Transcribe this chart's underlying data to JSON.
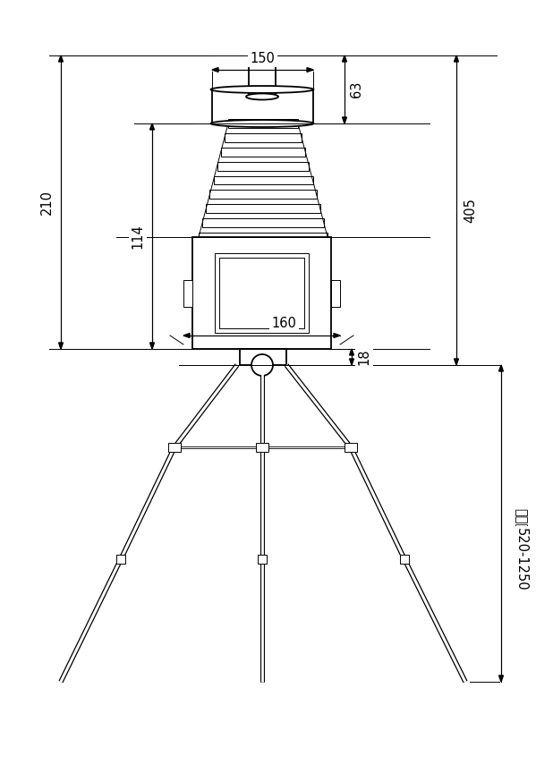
{
  "bg_color": "#ffffff",
  "line_color": "#000000",
  "fig_width": 6.18,
  "fig_height": 8.64,
  "dpi": 100,
  "dim_150_label": "150",
  "dim_63_label": "63",
  "dim_114_label": "114",
  "dim_210_label": "210",
  "dim_160_label": "160",
  "dim_18_label": "18",
  "dim_405_label": "405",
  "dim_range_line1": "伸缩范围",
  "dim_range_line2": "520-1250",
  "font_size": 10.5
}
